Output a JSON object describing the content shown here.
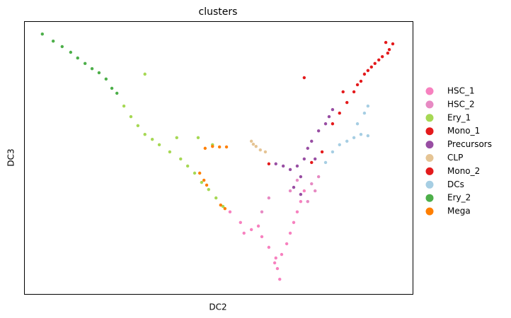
{
  "chart_data": {
    "type": "scatter",
    "title": "clusters",
    "x_label": "DC2",
    "y_label": "DC3",
    "xlim": [
      0,
      100
    ],
    "ylim": [
      0,
      100
    ],
    "legend": "right",
    "series": [
      {
        "name": "HSC_1",
        "color": "#f781bf",
        "x": [
          53.0,
          55.7,
          58.5,
          61.2,
          63.0,
          64.8,
          65.2,
          65.8,
          64.5,
          66.3,
          67.6,
          68.5,
          69.4,
          70.3,
          71.2,
          72.1,
          60.3,
          56.6
        ],
        "values": [
          30.1,
          26.2,
          23.6,
          21.0,
          17.1,
          13.2,
          9.3,
          5.4,
          11.4,
          14.5,
          18.4,
          22.3,
          26.2,
          30.1,
          33.9,
          37.8,
          24.9,
          22.3
        ]
      },
      {
        "name": "HSC_2",
        "color": "#e78ac3",
        "x": [
          68.5,
          70.3,
          74.0,
          75.8,
          63.0,
          61.2,
          73.0,
          74.9
        ],
        "values": [
          37.8,
          41.7,
          40.4,
          43.0,
          35.2,
          30.1,
          33.9,
          37.8
        ]
      },
      {
        "name": "Ery_1",
        "color": "#a6d854",
        "x": [
          25.7,
          27.5,
          29.3,
          31.1,
          33.0,
          34.8,
          37.5,
          40.3,
          42.1,
          43.9,
          45.7,
          47.5,
          49.4,
          51.2,
          39.3,
          44.8,
          48.5,
          31.1
        ],
        "values": [
          68.9,
          65.0,
          61.7,
          58.5,
          56.7,
          54.7,
          52.1,
          49.5,
          46.9,
          44.3,
          40.9,
          38.3,
          35.2,
          32.1,
          57.3,
          57.3,
          54.7,
          80.6
        ]
      },
      {
        "name": "Mono_1",
        "color": "#e41a1c",
        "x": [
          79.4,
          81.2,
          83.1,
          84.9,
          86.7,
          88.5,
          90.3,
          92.2,
          94.0,
          93.1,
          82.1,
          74.0,
          76.7
        ],
        "values": [
          62.4,
          66.3,
          70.2,
          74.1,
          78.0,
          81.9,
          84.5,
          87.0,
          89.6,
          92.2,
          74.1,
          48.2,
          52.1
        ]
      },
      {
        "name": "Precursors",
        "color": "#984ea3",
        "x": [
          66.7,
          68.5,
          70.3,
          71.2,
          72.1,
          73.0,
          74.0,
          75.8,
          77.6,
          78.5,
          79.4,
          69.4,
          71.2,
          74.9,
          64.8
        ],
        "values": [
          46.9,
          45.6,
          46.9,
          43.0,
          49.5,
          53.4,
          56.0,
          59.8,
          62.4,
          65.0,
          67.6,
          39.1,
          36.5,
          49.5,
          47.7
        ]
      },
      {
        "name": "CLP",
        "color": "#e5c494",
        "x": [
          58.5,
          59.7,
          60.8,
          62.1,
          59.0
        ],
        "values": [
          56.0,
          54.1,
          52.8,
          52.1,
          54.9
        ]
      },
      {
        "name": "Mono_2",
        "color": "#e31a1c",
        "x": [
          94.9,
          93.6,
          91.3,
          89.4,
          87.6,
          85.8,
          72.1,
          63.0
        ],
        "values": [
          91.7,
          88.3,
          85.8,
          83.2,
          80.6,
          76.7,
          79.3,
          47.7
        ]
      },
      {
        "name": "DCs",
        "color": "#a6cee3",
        "x": [
          84.9,
          86.7,
          88.5,
          85.8,
          87.6,
          88.5,
          79.4,
          81.2,
          77.6,
          83.1
        ],
        "values": [
          57.3,
          58.5,
          58.0,
          62.4,
          66.3,
          68.9,
          52.1,
          54.7,
          48.2,
          56.0
        ]
      },
      {
        "name": "Ery_2",
        "color": "#4daf4a",
        "x": [
          4.7,
          7.5,
          9.8,
          12.0,
          13.8,
          15.7,
          17.5,
          19.3,
          21.1,
          22.6,
          23.9
        ],
        "values": [
          95.3,
          92.7,
          90.7,
          88.6,
          86.5,
          84.5,
          82.6,
          81.1,
          78.8,
          75.4,
          73.6
        ]
      },
      {
        "name": "Mega",
        "color": "#ff7f00",
        "x": [
          46.6,
          48.5,
          50.3,
          52.1,
          45.2,
          46.3,
          47.0,
          50.6,
          51.7
        ],
        "values": [
          53.4,
          54.1,
          53.9,
          53.9,
          44.3,
          41.7,
          39.9,
          32.6,
          31.3
        ]
      }
    ]
  }
}
